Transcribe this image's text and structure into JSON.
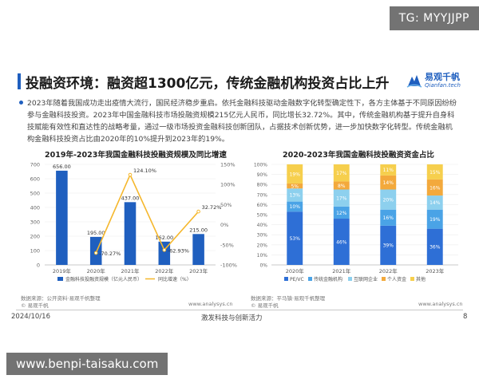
{
  "watermark_top": "TG: MYYJJPP",
  "watermark_bottom": "www.benpi-taisaku.com",
  "slide": {
    "title": "投融资环境：融资超1300亿元，传统金融机构投资占比上升",
    "logo": {
      "name": "易观千帆",
      "sub": "Qianfan.tech"
    },
    "paragraph": "2023年随着我国成功走出疫情大流行，国民经济稳步重启。依托金融科技驱动金融数字化转型确定性下，各方主体基于不同原因纷纷参与金融科技投资。2023年中国金融科技市场投融资规模215亿元人民币，同比增长32.72%。其中，传统金融机构基于提升自身科技赋能有效性和直达性的战略考量，通过一级市场投资金融科技创新团队，占据技术创新优势，进一步加快数字化转型。传统金融机构金融科技投资占比由2020年的10%提升到2023年的19%。",
    "left_source": "数据来源：公开资料·易观千帆整理",
    "right_source": "数据来源：平马镇·易观千帆整理",
    "brand_left": "© 易观千帆",
    "brand_right": "© 易观千帆",
    "url_left": "www.analysys.cn",
    "url_right": "www.analysys.cn",
    "footer_date": "2024/10/16",
    "footer_center": "激发科技与创新活力",
    "footer_page": "8"
  },
  "colors": {
    "accent": "#1f5fbf",
    "bar_blue": "#1f5fbf",
    "line_orange": "#f5b72c",
    "pevc": "#2e6fd6",
    "trad": "#4aa3e6",
    "internet": "#8dd0ee",
    "personal": "#f3a93c",
    "other": "#f6cf4d"
  },
  "chart_data": [
    {
      "type": "bar",
      "title": "2019年-2023年我国金融科技投融资规模及同比增速",
      "categories": [
        "2019年",
        "2020年",
        "2021年",
        "2022年",
        "2023年"
      ],
      "ylim": [
        0,
        700
      ],
      "y_ticks": [
        "0",
        "100",
        "200",
        "300",
        "400",
        "500",
        "600",
        "700"
      ],
      "y2lim": [
        -100,
        150
      ],
      "y2_ticks": [
        "-100%",
        "-50%",
        "0%",
        "50%",
        "100%",
        "150%"
      ],
      "series": [
        {
          "name": "金融科技投融资规模（亿元人民币）",
          "kind": "bar",
          "values": [
            656,
            195,
            437,
            162,
            215
          ],
          "labels": [
            "656.00",
            "195.00",
            "437.00",
            "162.00",
            "215.00"
          ]
        },
        {
          "name": "同比增速（%）",
          "kind": "line",
          "axis": "right",
          "values": [
            null,
            -70.27,
            124.1,
            -62.93,
            32.72
          ],
          "labels": [
            "",
            "-70.27%",
            "124.10%",
            "-62.93%",
            "32.72%"
          ]
        }
      ]
    },
    {
      "type": "bar",
      "stacked": true,
      "title": "2020-2023年我国金融科技投融资资金占比",
      "categories": [
        "2020年",
        "2021年",
        "2022年",
        "2023年"
      ],
      "ylim": [
        0,
        100
      ],
      "y_ticks": [
        "0%",
        "10%",
        "20%",
        "30%",
        "40%",
        "50%",
        "60%",
        "70%",
        "80%",
        "90%",
        "100%"
      ],
      "series": [
        {
          "name": "PE/VC",
          "values": [
            53,
            46,
            39,
            36
          ]
        },
        {
          "name": "传统金融机构",
          "values": [
            10,
            12,
            16,
            19
          ]
        },
        {
          "name": "互联网企业",
          "values": [
            13,
            17,
            20,
            14
          ]
        },
        {
          "name": "个人资金",
          "values": [
            5,
            8,
            14,
            16
          ]
        },
        {
          "name": "其他",
          "values": [
            19,
            17,
            11,
            15
          ]
        }
      ]
    }
  ]
}
